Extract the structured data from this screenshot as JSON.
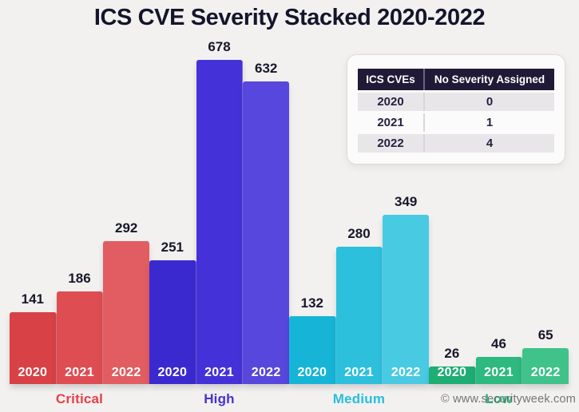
{
  "title": "ICS CVE Severity Stacked 2020-2022",
  "watermark": "© www.securityweek.com",
  "side_table": {
    "headers": [
      "ICS CVEs",
      "No Severity Assigned"
    ],
    "rows": [
      [
        "2020",
        "0"
      ],
      [
        "2021",
        "1"
      ],
      [
        "2022",
        "4"
      ]
    ]
  },
  "chart_data": {
    "type": "bar",
    "title": "ICS CVE Severity Stacked 2020-2022",
    "categories": [
      "Critical",
      "High",
      "Medium",
      "Low"
    ],
    "series": [
      {
        "name": "2020",
        "values": [
          141,
          251,
          132,
          26
        ]
      },
      {
        "name": "2021",
        "values": [
          186,
          678,
          280,
          46
        ]
      },
      {
        "name": "2022",
        "values": [
          292,
          632,
          349,
          65
        ]
      }
    ],
    "category_styles": {
      "Critical": {
        "bar_colors": [
          "#d84146",
          "#de4d52",
          "#e25d61"
        ],
        "label_color": "#e73e48"
      },
      "High": {
        "bar_colors": [
          "#3b29d0",
          "#4432d8",
          "#5747dd"
        ],
        "label_color": "#4431d8"
      },
      "Medium": {
        "bar_colors": [
          "#16b5d7",
          "#2cc0dd",
          "#49cae3"
        ],
        "label_color": "#27bedd"
      },
      "Low": {
        "bar_colors": [
          "#1ead73",
          "#2db97f",
          "#40c28b"
        ],
        "label_color": "#2db97f"
      }
    },
    "ylim": [
      0,
      700
    ],
    "grid": false,
    "legend_position": "none",
    "data_labels": true
  }
}
